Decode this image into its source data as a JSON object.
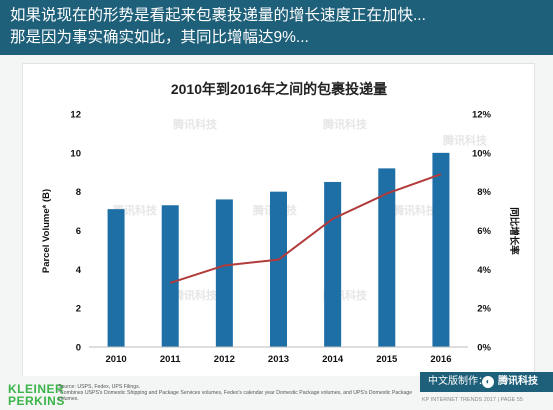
{
  "header": {
    "line1": "如果说现在的形势是看起来包裹投递量的增长速度正在加快...",
    "line2": "那是因为事实确实如此，其同比增幅达9%..."
  },
  "watermark": "腾讯科技",
  "chart_data": {
    "type": "bar",
    "title": "2010年到2016年之间的包裹投递量",
    "ylabel": "Parcel Volume* (B)",
    "y2label": "同比增长率",
    "categories": [
      "2010",
      "2011",
      "2012",
      "2013",
      "2014",
      "2015",
      "2016"
    ],
    "ylim": [
      0,
      12
    ],
    "yticks": [
      0,
      2,
      4,
      6,
      8,
      10,
      12
    ],
    "y2lim": [
      0,
      12
    ],
    "y2ticks": [
      "0%",
      "2%",
      "4%",
      "6%",
      "8%",
      "10%",
      "12%"
    ],
    "series": [
      {
        "type": "bar",
        "values": [
          7.1,
          7.3,
          7.6,
          8.0,
          8.5,
          9.2,
          10.0
        ],
        "color": "#1d6fa5",
        "axis": "left"
      },
      {
        "type": "line",
        "x": [
          "2011",
          "2012",
          "2013",
          "2014",
          "2015",
          "2016"
        ],
        "values": [
          3.3,
          4.2,
          4.5,
          6.6,
          7.9,
          8.9
        ],
        "color": "#b23b3b",
        "axis": "right"
      }
    ],
    "grid": false,
    "legend": "none"
  },
  "footer": {
    "logo_line1": "KLEINER",
    "logo_line2": "PERKINS",
    "source": "Source: USPS, Fedex, UPS Filings.",
    "note": "*Combines USPS's Domestic Shipping and Package Services volumes, Fedex's calendar year Domestic Package volumes, and UPS's Domestic Package volumes.",
    "badge_label": "中文版制作：",
    "badge_brand": "腾讯科技",
    "trend_text": "KP INTERNET TRENDS 2017 | PAGE 55"
  },
  "colors": {
    "header_bg": "#1e5f79",
    "bar": "#1d6fa5",
    "line": "#b23b3b",
    "logo": "#3bb54a"
  }
}
